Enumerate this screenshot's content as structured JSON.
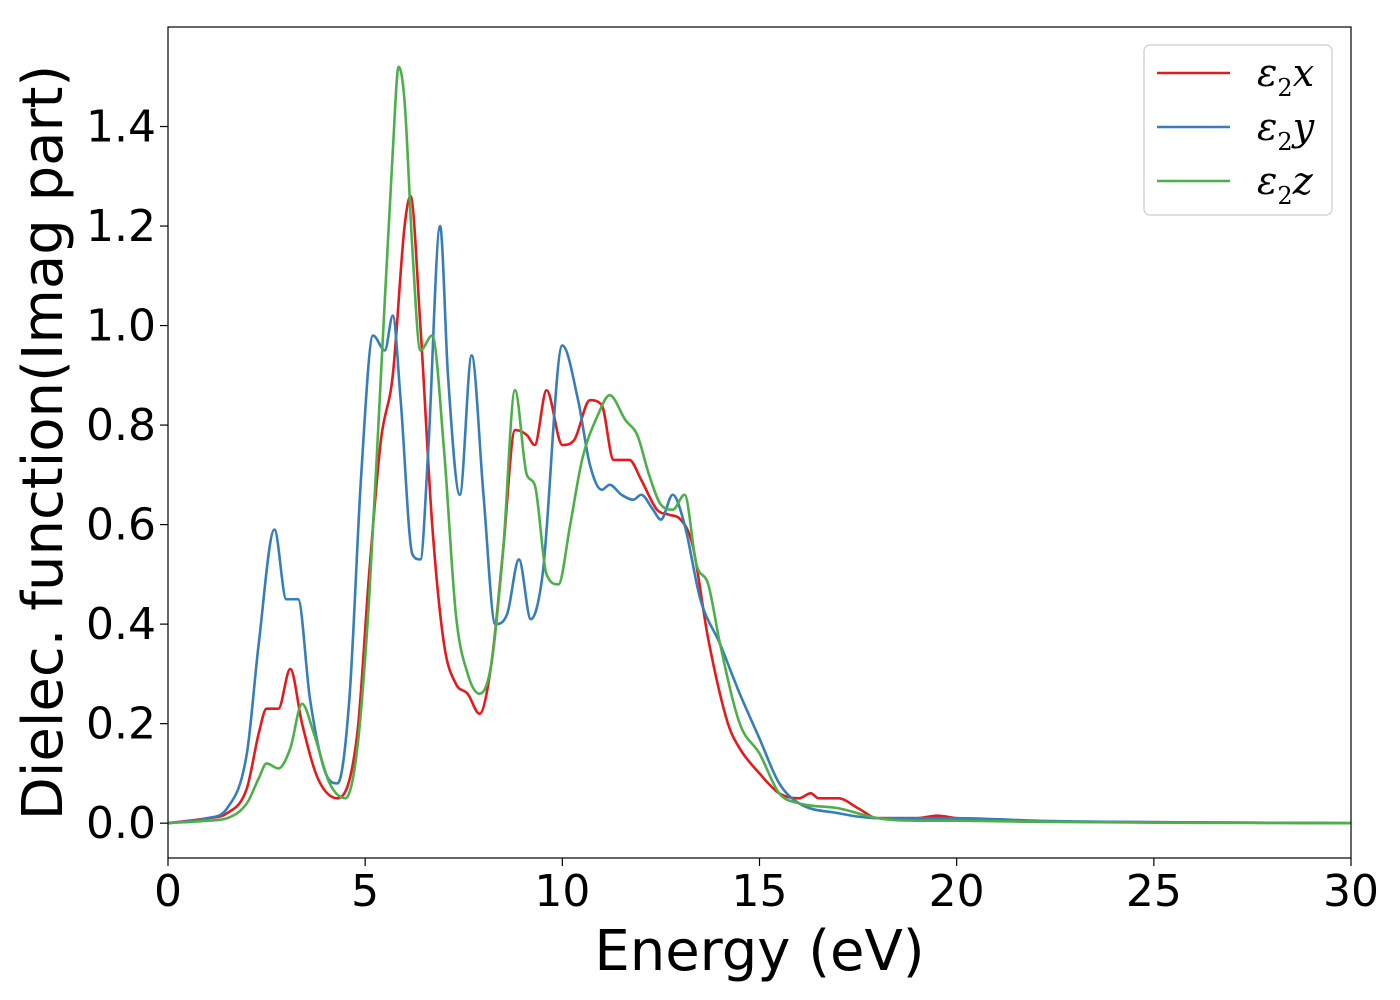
{
  "chart_data": {
    "type": "line",
    "xlabel": "Energy (eV)",
    "ylabel": "Dielec. function(Imag part)",
    "xlim": [
      0,
      30
    ],
    "ylim": [
      -0.07,
      1.6
    ],
    "xticks": [
      0,
      5,
      10,
      15,
      20,
      25,
      30
    ],
    "xtick_labels": [
      "0",
      "5",
      "10",
      "15",
      "20",
      "25",
      "30"
    ],
    "yticks": [
      0.0,
      0.2,
      0.4,
      0.6,
      0.8,
      1.0,
      1.2,
      1.4
    ],
    "ytick_labels": [
      "0.0",
      "0.2",
      "0.4",
      "0.6",
      "0.8",
      "1.0",
      "1.2",
      "1.4"
    ],
    "grid": false,
    "legend_position": "top-right",
    "series": [
      {
        "name": "ε₂x",
        "legend_base": "ε",
        "legend_sub": "2",
        "legend_suffix": "x",
        "color": "#e41a1c",
        "x": [
          0,
          1,
          1.5,
          2,
          2.3,
          2.5,
          2.8,
          3.1,
          3.4,
          3.8,
          4.3,
          4.8,
          5.1,
          5.4,
          5.7,
          6.0,
          6.15,
          6.4,
          6.7,
          7.0,
          7.3,
          7.6,
          7.9,
          8.2,
          8.5,
          8.8,
          9.1,
          9.3,
          9.6,
          10.0,
          10.3,
          10.7,
          11.0,
          11.3,
          11.7,
          12.0,
          12.4,
          12.7,
          13.0,
          13.3,
          13.7,
          14.2,
          14.5,
          15.0,
          15.5,
          16.0,
          16.3,
          16.5,
          17.0,
          17.5,
          18.0,
          18.5,
          19.0,
          19.5,
          20,
          21,
          22,
          25,
          30
        ],
        "y": [
          0,
          0.01,
          0.02,
          0.07,
          0.18,
          0.23,
          0.23,
          0.31,
          0.2,
          0.09,
          0.05,
          0.18,
          0.5,
          0.77,
          0.9,
          1.2,
          1.26,
          1.0,
          0.6,
          0.36,
          0.28,
          0.26,
          0.22,
          0.32,
          0.55,
          0.79,
          0.78,
          0.76,
          0.87,
          0.76,
          0.77,
          0.85,
          0.84,
          0.73,
          0.73,
          0.69,
          0.63,
          0.62,
          0.61,
          0.56,
          0.37,
          0.2,
          0.15,
          0.1,
          0.06,
          0.05,
          0.06,
          0.05,
          0.05,
          0.03,
          0.01,
          0.01,
          0.01,
          0.015,
          0.01,
          0.005,
          0.003,
          0.002,
          0
        ]
      },
      {
        "name": "ε₂y",
        "legend_base": "ε",
        "legend_sub": "2",
        "legend_suffix": "y",
        "color": "#377eb8",
        "x": [
          0,
          1,
          1.5,
          2,
          2.3,
          2.7,
          3.0,
          3.3,
          3.6,
          4.0,
          4.3,
          4.6,
          4.9,
          5.2,
          5.5,
          5.7,
          5.9,
          6.2,
          6.4,
          6.6,
          6.9,
          7.1,
          7.4,
          7.7,
          8.0,
          8.3,
          8.6,
          8.9,
          9.2,
          9.5,
          10.0,
          10.4,
          10.7,
          11.0,
          11.2,
          11.5,
          11.8,
          12.0,
          12.3,
          12.5,
          12.8,
          13.1,
          13.5,
          14.0,
          14.5,
          15.0,
          15.5,
          16.0,
          17.0,
          18.0,
          19.0,
          20,
          21,
          22,
          25,
          30
        ],
        "y": [
          0,
          0.01,
          0.03,
          0.14,
          0.36,
          0.59,
          0.45,
          0.45,
          0.25,
          0.1,
          0.08,
          0.25,
          0.7,
          0.98,
          0.95,
          1.02,
          0.85,
          0.54,
          0.53,
          0.75,
          1.2,
          0.9,
          0.66,
          0.94,
          0.66,
          0.4,
          0.42,
          0.53,
          0.41,
          0.5,
          0.96,
          0.85,
          0.72,
          0.67,
          0.68,
          0.66,
          0.65,
          0.66,
          0.63,
          0.61,
          0.66,
          0.6,
          0.45,
          0.36,
          0.26,
          0.17,
          0.08,
          0.04,
          0.02,
          0.01,
          0.01,
          0.01,
          0.008,
          0.005,
          0.002,
          0
        ]
      },
      {
        "name": "ε₂z",
        "legend_base": "ε",
        "legend_sub": "2",
        "legend_suffix": "z",
        "color": "#4daf4a",
        "x": [
          0,
          1,
          1.5,
          2,
          2.3,
          2.5,
          2.8,
          3.1,
          3.4,
          3.7,
          4.1,
          4.5,
          4.8,
          5.1,
          5.4,
          5.7,
          5.85,
          6.0,
          6.2,
          6.4,
          6.7,
          7.0,
          7.3,
          7.6,
          7.9,
          8.2,
          8.5,
          8.8,
          9.1,
          9.3,
          9.6,
          9.9,
          10.2,
          10.5,
          10.9,
          11.2,
          11.6,
          11.9,
          12.2,
          12.5,
          12.8,
          13.1,
          13.4,
          13.7,
          14.0,
          14.5,
          15.0,
          15.5,
          16.0,
          17.0,
          18.0,
          19.0,
          20,
          21,
          22,
          25,
          30
        ],
        "y": [
          0,
          0.005,
          0.01,
          0.04,
          0.09,
          0.12,
          0.11,
          0.15,
          0.24,
          0.18,
          0.08,
          0.05,
          0.15,
          0.45,
          0.9,
          1.35,
          1.52,
          1.45,
          1.15,
          0.95,
          0.98,
          0.75,
          0.42,
          0.3,
          0.26,
          0.32,
          0.55,
          0.87,
          0.7,
          0.68,
          0.5,
          0.48,
          0.6,
          0.73,
          0.82,
          0.86,
          0.81,
          0.78,
          0.7,
          0.64,
          0.63,
          0.66,
          0.52,
          0.48,
          0.36,
          0.2,
          0.14,
          0.06,
          0.04,
          0.03,
          0.01,
          0.005,
          0.005,
          0.004,
          0.003,
          0.001,
          0
        ]
      }
    ]
  }
}
